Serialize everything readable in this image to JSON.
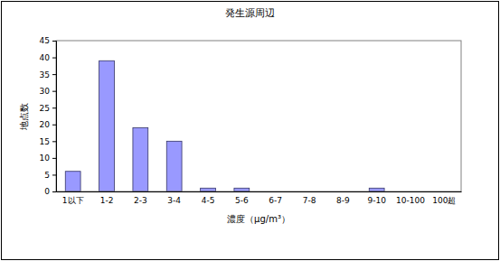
{
  "chart_data": {
    "type": "bar",
    "title": "発生源周辺",
    "x_label": "濃度（μg/m³）",
    "y_label": "地点数",
    "categories": [
      "1以下",
      "1-2",
      "2-3",
      "3-4",
      "4-5",
      "5-6",
      "6-7",
      "7-8",
      "8-9",
      "9-10",
      "10-100",
      "100超"
    ],
    "values": [
      6,
      39,
      19,
      15,
      1,
      1,
      0,
      0,
      0,
      1,
      0,
      0
    ],
    "color": "#9999ff",
    "ylim": [
      0,
      45
    ],
    "yticks": [
      0,
      5,
      10,
      15,
      20,
      25,
      30,
      35,
      40,
      45
    ],
    "grid": false
  }
}
